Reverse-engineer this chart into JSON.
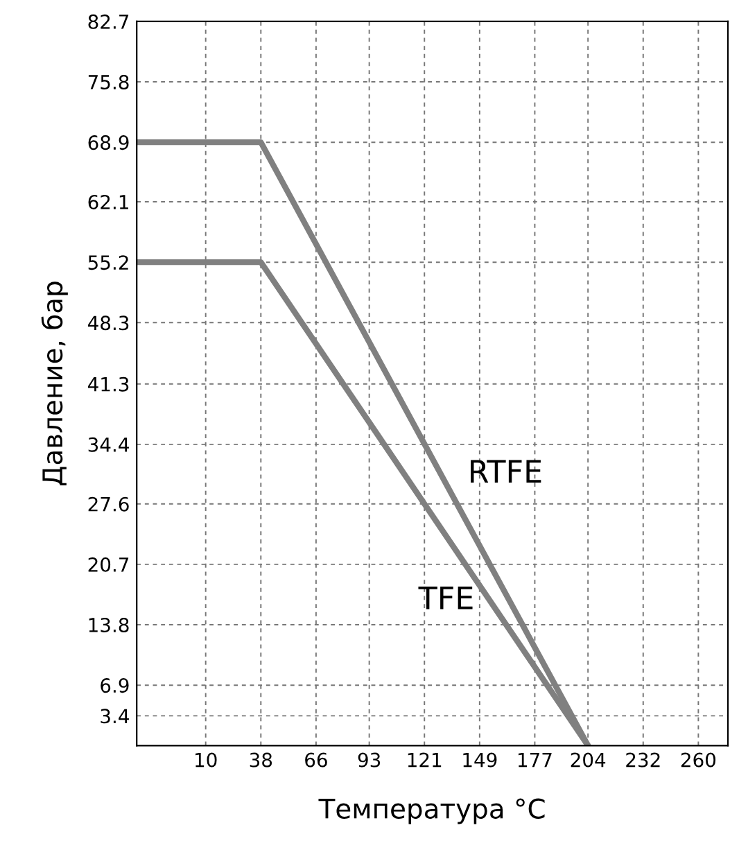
{
  "chart_data": {
    "type": "line",
    "xlabel": "Температура °C",
    "ylabel": "Давление, бар",
    "series": [
      {
        "name": "RTFE",
        "color": "#808080",
        "x": [
          -25,
          38,
          204
        ],
        "values": [
          68.9,
          68.9,
          0
        ]
      },
      {
        "name": "TFE",
        "color": "#808080",
        "x": [
          -25,
          38,
          204
        ],
        "values": [
          55.2,
          55.2,
          0
        ]
      }
    ],
    "xlim": [
      -25,
      275
    ],
    "xticks": [
      10,
      38,
      66,
      93,
      121,
      149,
      177,
      204,
      232,
      260
    ],
    "ylim": [
      0,
      82.7
    ],
    "yticks": [
      3.4,
      6.9,
      13.8,
      20.7,
      27.6,
      34.4,
      41.3,
      48.3,
      55.2,
      62.1,
      68.9,
      75.8,
      82.7
    ],
    "grid": true,
    "marker": "none",
    "line_style": "solid"
  }
}
